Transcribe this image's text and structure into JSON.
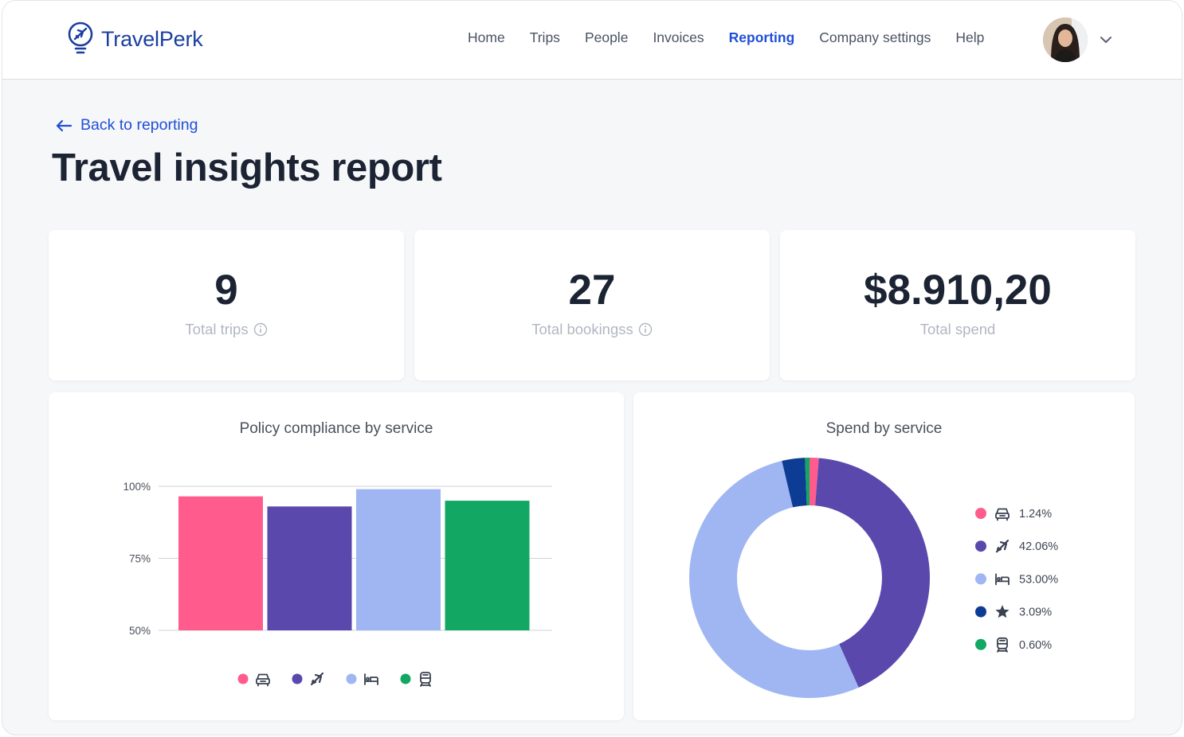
{
  "header": {
    "brand": "TravelPerk",
    "nav": [
      {
        "label": "Home",
        "active": false
      },
      {
        "label": "Trips",
        "active": false
      },
      {
        "label": "People",
        "active": false
      },
      {
        "label": "Invoices",
        "active": false
      },
      {
        "label": "Reporting",
        "active": true
      },
      {
        "label": "Company settings",
        "active": false
      },
      {
        "label": "Help",
        "active": false
      }
    ],
    "avatar_icon": "user-avatar",
    "menu_icon": "chevron-down-icon"
  },
  "page": {
    "back_label": "Back to reporting",
    "title": "Travel insights report"
  },
  "stats": [
    {
      "value": "9",
      "label": "Total trips",
      "info_icon": true
    },
    {
      "value": "27",
      "label": "Total bookingss",
      "info_icon": true
    },
    {
      "value": "$8.910,20",
      "label": "Total spend",
      "info_icon": false
    }
  ],
  "colors": {
    "accent": "#1f4fd8",
    "car": "#ff5c8d",
    "flight": "#5a48ad",
    "hotel": "#9fb6f2",
    "other": "#0d3c94",
    "train": "#12a864"
  },
  "chart_data": [
    {
      "type": "bar",
      "title": "Policy compliance by service",
      "categories": [
        "car",
        "flight",
        "hotel",
        "train"
      ],
      "category_icons": [
        "car-icon",
        "plane-icon",
        "bed-icon",
        "train-icon"
      ],
      "values": [
        96.5,
        93,
        99,
        95
      ],
      "colors": [
        "#ff5c8d",
        "#5a48ad",
        "#9fb6f2",
        "#12a864"
      ],
      "ylim": [
        50,
        100
      ],
      "yticks": [
        50,
        75,
        100
      ],
      "ytick_labels": [
        "50%",
        "75%",
        "100%"
      ],
      "grid": true,
      "legend": "bottom"
    },
    {
      "type": "pie",
      "donut": true,
      "title": "Spend by service",
      "slices": [
        {
          "icon": "car-icon",
          "label": "1.24%",
          "value": 1.24,
          "color": "#ff5c8d"
        },
        {
          "icon": "plane-icon",
          "label": "42.06%",
          "value": 42.06,
          "color": "#5a48ad"
        },
        {
          "icon": "bed-icon",
          "label": "53.00%",
          "value": 53.0,
          "color": "#9fb6f2"
        },
        {
          "icon": "star-icon",
          "label": "3.09%",
          "value": 3.09,
          "color": "#0d3c94"
        },
        {
          "icon": "train-icon",
          "label": "0.60%",
          "value": 0.6,
          "color": "#12a864"
        }
      ],
      "legend": "right"
    }
  ]
}
